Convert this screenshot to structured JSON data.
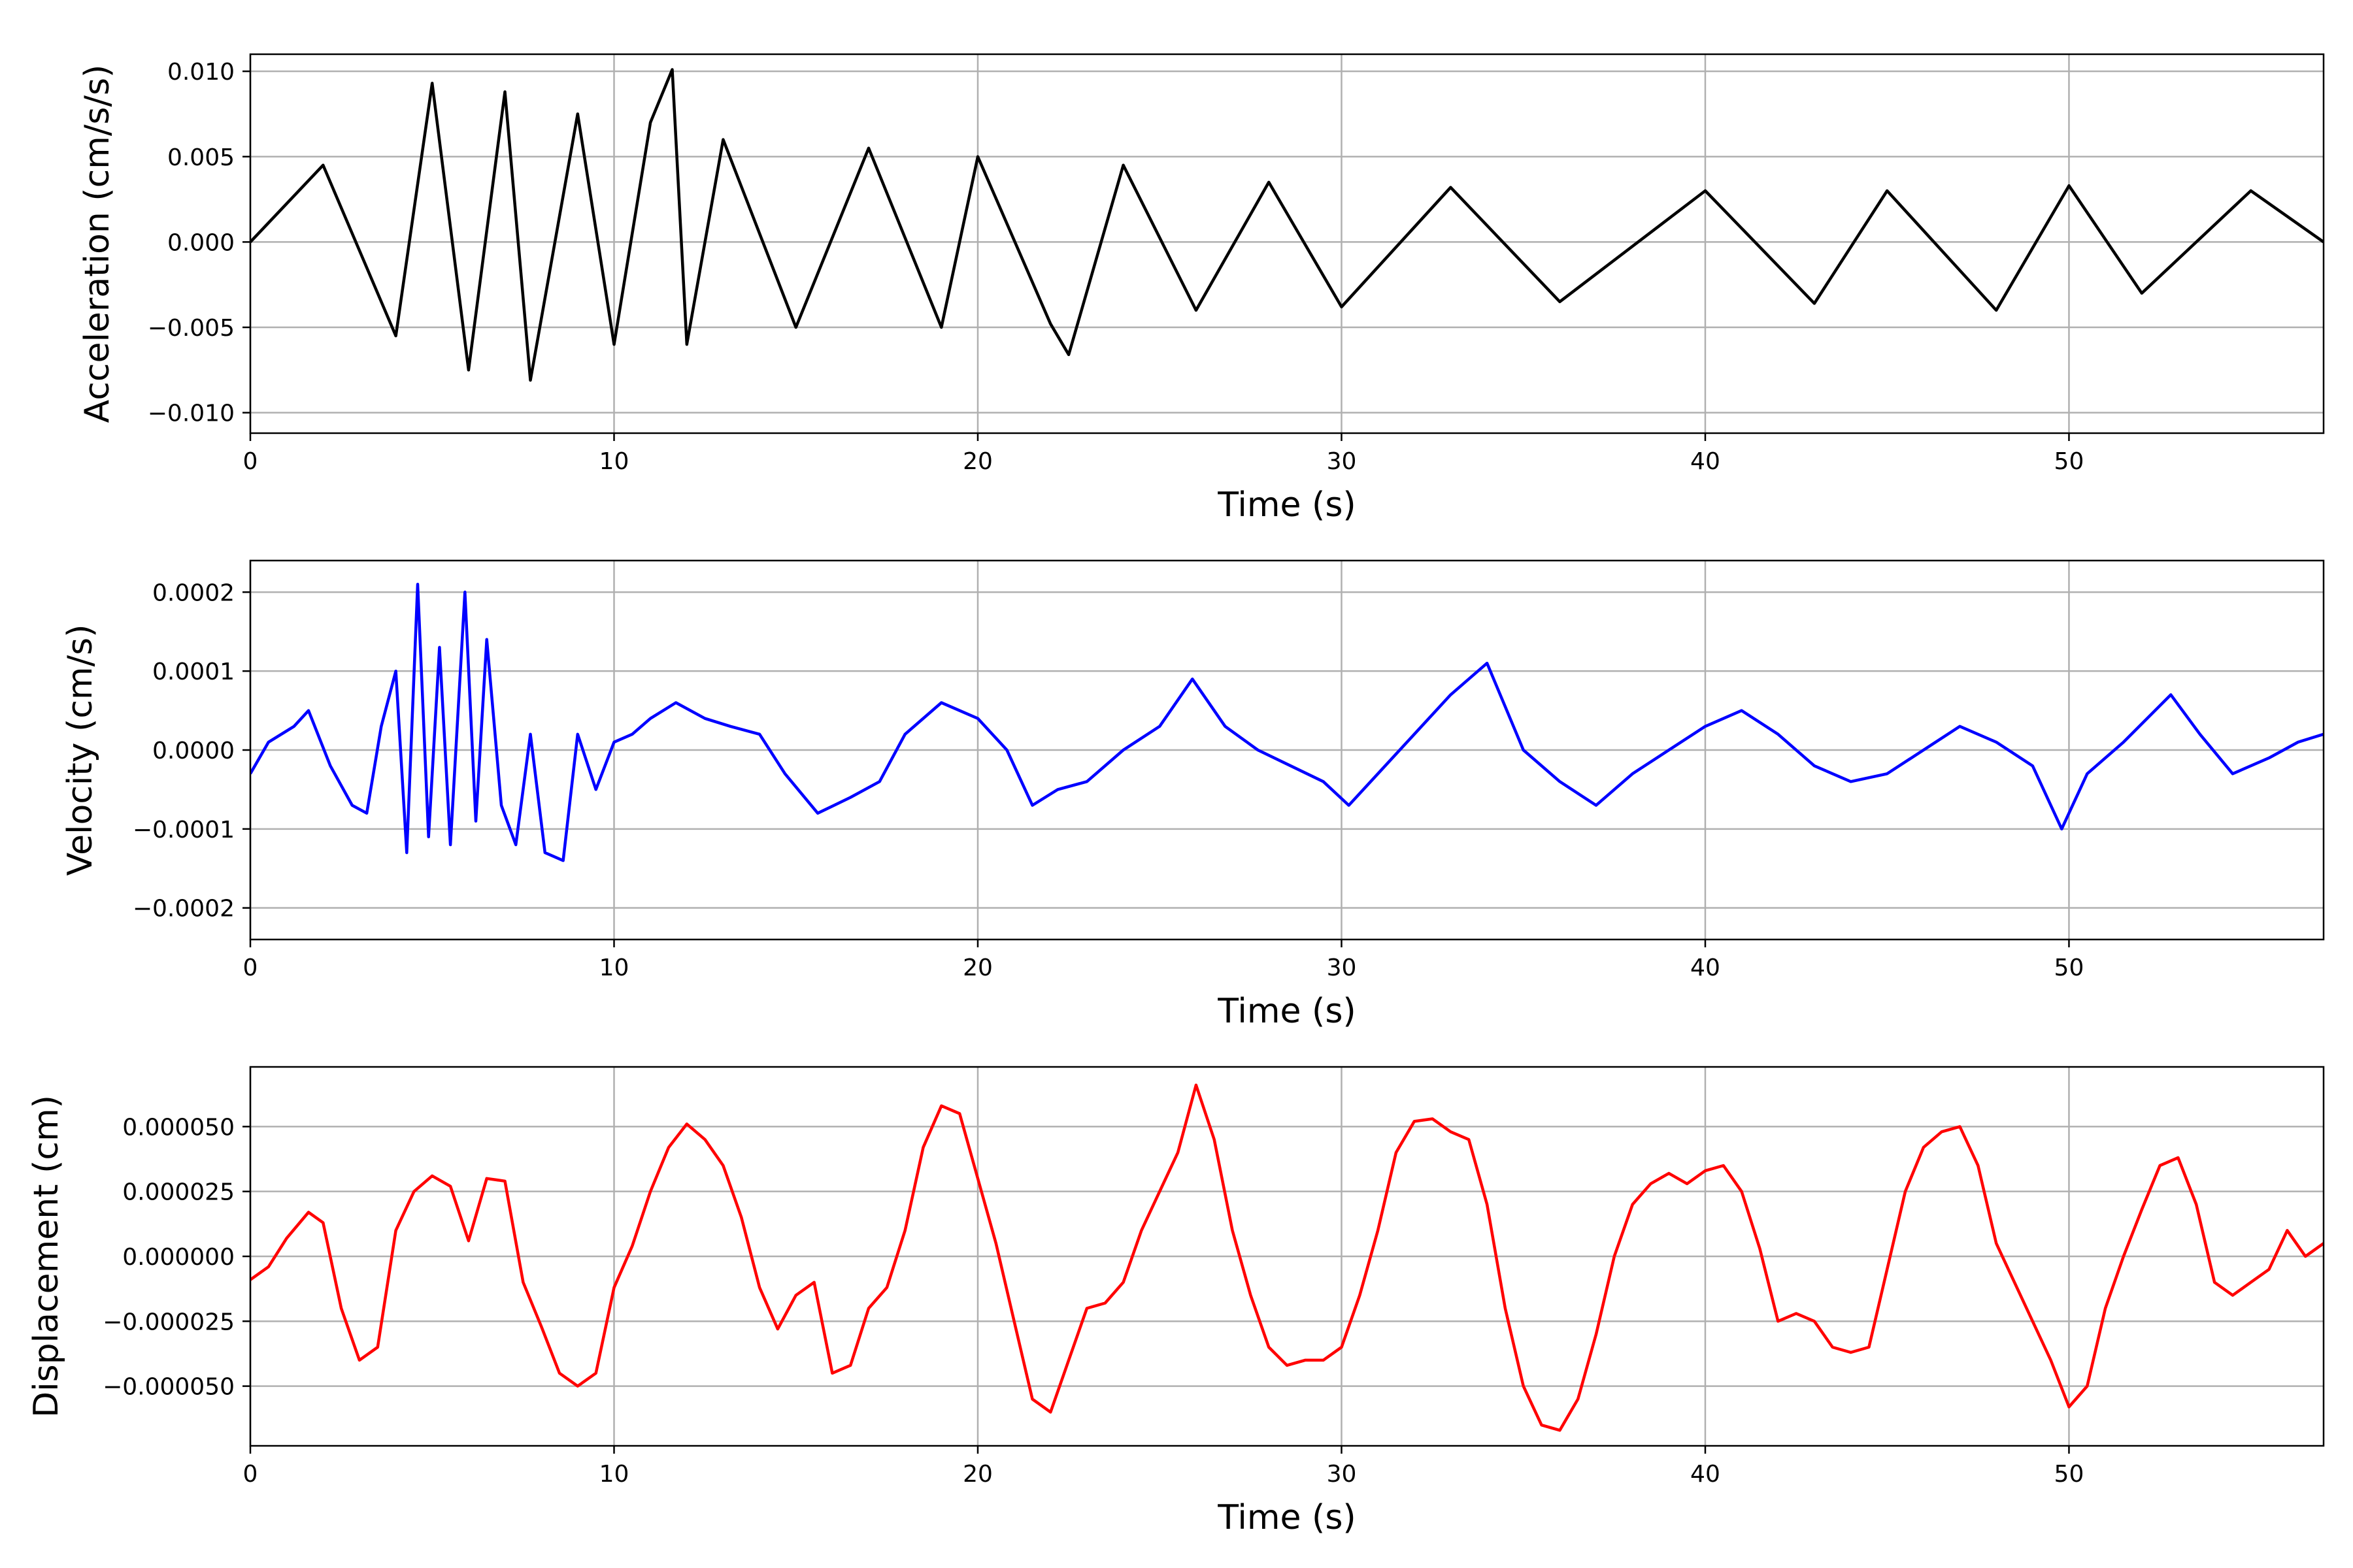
{
  "chart_data": [
    {
      "type": "line",
      "xlabel": "Time (s)",
      "ylabel": "Acceleration (cm/s/s)",
      "color": "#000000",
      "xlim": [
        0,
        57
      ],
      "ylim": [
        -0.0112,
        0.011
      ],
      "xticks": [
        0,
        10,
        20,
        30,
        40,
        50
      ],
      "xtick_labels": [
        "0",
        "10",
        "20",
        "30",
        "40",
        "50"
      ],
      "yticks": [
        -0.01,
        -0.005,
        0.0,
        0.005,
        0.01
      ],
      "ytick_labels": [
        "−0.010",
        "−0.005",
        "0.000",
        "0.005",
        "0.010"
      ],
      "grid": true,
      "series": [
        {
          "x": [
            0,
            2,
            4,
            5,
            6,
            7,
            7.7,
            9,
            10,
            11,
            11.6,
            12,
            13,
            15,
            17,
            19,
            20,
            22,
            22.5,
            24,
            26,
            28,
            30,
            33,
            36,
            40,
            43,
            45,
            48,
            50,
            52,
            55,
            57
          ],
          "y": [
            0.0,
            0.0045,
            -0.0055,
            0.0093,
            -0.0075,
            0.0088,
            -0.0081,
            0.0075,
            -0.006,
            0.007,
            0.0101,
            -0.006,
            0.006,
            -0.005,
            0.0055,
            -0.005,
            0.005,
            -0.0048,
            -0.0066,
            0.0045,
            -0.004,
            0.0035,
            -0.0038,
            0.0032,
            -0.0035,
            0.003,
            -0.0036,
            0.003,
            -0.004,
            0.0033,
            -0.003,
            0.003,
            0.0
          ]
        }
      ]
    },
    {
      "type": "line",
      "xlabel": "Time (s)",
      "ylabel": "Velocity (cm/s)",
      "color": "#0000ff",
      "xlim": [
        0,
        57
      ],
      "ylim": [
        -0.00024,
        0.00024
      ],
      "xticks": [
        0,
        10,
        20,
        30,
        40,
        50
      ],
      "xtick_labels": [
        "0",
        "10",
        "20",
        "30",
        "40",
        "50"
      ],
      "yticks": [
        -0.0002,
        -0.0001,
        0.0,
        0.0001,
        0.0002
      ],
      "ytick_labels": [
        "−0.0002",
        "−0.0001",
        "0.0000",
        "0.0001",
        "0.0002"
      ],
      "grid": true,
      "series": [
        {
          "x": [
            0,
            0.5,
            1.2,
            1.6,
            2.2,
            2.8,
            3.2,
            3.6,
            4.0,
            4.3,
            4.6,
            4.9,
            5.2,
            5.5,
            5.9,
            6.2,
            6.5,
            6.9,
            7.3,
            7.7,
            8.1,
            8.6,
            9.0,
            9.5,
            10.0,
            10.5,
            11.0,
            11.7,
            12.5,
            13.2,
            14.0,
            14.7,
            15.6,
            16.5,
            17.3,
            18.0,
            19.0,
            20.0,
            20.8,
            21.5,
            22.2,
            23.0,
            24.0,
            25.0,
            25.9,
            26.8,
            27.7,
            28.6,
            29.5,
            30.2,
            31.0,
            32.0,
            33.0,
            34.0,
            35.0,
            36.0,
            37.0,
            38.0,
            39.0,
            40.0,
            41.0,
            42.0,
            43.0,
            44.0,
            45.0,
            46.0,
            47.0,
            48.0,
            49.0,
            49.8,
            50.5,
            51.5,
            52.8,
            53.6,
            54.5,
            55.5,
            56.3,
            57.0
          ],
          "y": [
            -3e-05,
            1e-05,
            3e-05,
            5e-05,
            -2e-05,
            -7e-05,
            -8e-05,
            3e-05,
            0.0001,
            -0.00013,
            0.00021,
            -0.00011,
            0.00013,
            -0.00012,
            0.0002,
            -9e-05,
            0.00014,
            -7e-05,
            -0.00012,
            2e-05,
            -0.00013,
            -0.00014,
            2e-05,
            -5e-05,
            1e-05,
            2e-05,
            4e-05,
            6e-05,
            4e-05,
            3e-05,
            2e-05,
            -3e-05,
            -8e-05,
            -6e-05,
            -4e-05,
            2e-05,
            6e-05,
            4e-05,
            0.0,
            -7e-05,
            -5e-05,
            -4e-05,
            0.0,
            3e-05,
            9e-05,
            3e-05,
            0.0,
            -2e-05,
            -4e-05,
            -7e-05,
            -3e-05,
            2e-05,
            7e-05,
            0.00011,
            0.0,
            -4e-05,
            -7e-05,
            -3e-05,
            0.0,
            3e-05,
            5e-05,
            2e-05,
            -2e-05,
            -4e-05,
            -3e-05,
            0.0,
            3e-05,
            1e-05,
            -2e-05,
            -0.0001,
            -3e-05,
            1e-05,
            7e-05,
            2e-05,
            -3e-05,
            -1e-05,
            1e-05,
            2e-05
          ]
        }
      ]
    },
    {
      "type": "line",
      "xlabel": "Time (s)",
      "ylabel": "Displacement (cm)",
      "color": "#ff0000",
      "xlim": [
        0,
        57
      ],
      "ylim": [
        -7.3e-05,
        7.3e-05
      ],
      "xticks": [
        0,
        10,
        20,
        30,
        40,
        50
      ],
      "xtick_labels": [
        "0",
        "10",
        "20",
        "30",
        "40",
        "50"
      ],
      "yticks": [
        -5e-05,
        -2.5e-05,
        0.0,
        2.5e-05,
        5e-05
      ],
      "ytick_labels": [
        "−0.000050",
        "−0.000025",
        "0.000000",
        "0.000025",
        "0.000050"
      ],
      "grid": true,
      "series": [
        {
          "x": [
            0,
            0.5,
            1.0,
            1.6,
            2.0,
            2.5,
            3.0,
            3.5,
            4.0,
            4.5,
            5.0,
            5.5,
            6.0,
            6.5,
            7.0,
            7.5,
            8.0,
            8.5,
            9.0,
            9.5,
            10.0,
            10.5,
            11.0,
            11.5,
            12.0,
            12.5,
            13.0,
            13.5,
            14.0,
            14.5,
            15.0,
            15.5,
            16.0,
            16.5,
            17.0,
            17.5,
            18.0,
            18.5,
            19.0,
            19.5,
            20.0,
            20.5,
            21.0,
            21.5,
            22.0,
            22.5,
            23.0,
            23.5,
            24.0,
            24.5,
            25.0,
            25.5,
            26.0,
            26.5,
            27.0,
            27.5,
            28.0,
            28.5,
            29.0,
            29.5,
            30.0,
            30.5,
            31.0,
            31.5,
            32.0,
            32.5,
            33.0,
            33.5,
            34.0,
            34.5,
            35.0,
            35.5,
            36.0,
            36.5,
            37.0,
            37.5,
            38.0,
            38.5,
            39.0,
            39.5,
            40.0,
            40.5,
            41.0,
            41.5,
            42.0,
            42.5,
            43.0,
            43.5,
            44.0,
            44.5,
            45.0,
            45.5,
            46.0,
            46.5,
            47.0,
            47.5,
            48.0,
            48.5,
            49.0,
            49.5,
            50.0,
            50.5,
            51.0,
            51.5,
            52.0,
            52.5,
            53.0,
            53.5,
            54.0,
            54.5,
            55.0,
            55.5,
            56.0,
            56.5,
            57.0
          ],
          "y": [
            -9e-06,
            -4e-06,
            7e-06,
            1.7e-05,
            1.3e-05,
            -2e-05,
            -4e-05,
            -3.5e-05,
            1e-05,
            2.5e-05,
            3.1e-05,
            2.7e-05,
            6e-06,
            3e-05,
            2.9e-05,
            -1e-05,
            -2.7e-05,
            -4.5e-05,
            -5e-05,
            -4.5e-05,
            -1.2e-05,
            4e-06,
            2.5e-05,
            4.2e-05,
            5.1e-05,
            4.5e-05,
            3.5e-05,
            1.5e-05,
            -1.2e-05,
            -2.8e-05,
            -1.5e-05,
            -1e-05,
            -4.5e-05,
            -4.2e-05,
            -2e-05,
            -1.2e-05,
            1e-05,
            4.2e-05,
            5.8e-05,
            5.5e-05,
            3e-05,
            5e-06,
            -2.5e-05,
            -5.5e-05,
            -6e-05,
            -4e-05,
            -2e-05,
            -1.8e-05,
            -1e-05,
            1e-05,
            2.5e-05,
            4e-05,
            6.6e-05,
            4.5e-05,
            1e-05,
            -1.5e-05,
            -3.5e-05,
            -4.2e-05,
            -4e-05,
            -4e-05,
            -3.5e-05,
            -1.5e-05,
            1e-05,
            4e-05,
            5.2e-05,
            5.3e-05,
            4.8e-05,
            4.5e-05,
            2e-05,
            -2e-05,
            -5e-05,
            -6.5e-05,
            -6.7e-05,
            -5.5e-05,
            -3e-05,
            0.0,
            2e-05,
            2.8e-05,
            3.2e-05,
            2.8e-05,
            3.3e-05,
            3.5e-05,
            2.5e-05,
            3e-06,
            -2.5e-05,
            -2.2e-05,
            -2.5e-05,
            -3.5e-05,
            -3.7e-05,
            -3.5e-05,
            -5e-06,
            2.5e-05,
            4.2e-05,
            4.8e-05,
            5e-05,
            3.5e-05,
            5e-06,
            -1e-05,
            -2.5e-05,
            -4e-05,
            -5.8e-05,
            -5e-05,
            -2e-05,
            0.0,
            1.8e-05,
            3.5e-05,
            3.8e-05,
            2e-05,
            -1e-05,
            -1.5e-05,
            -1e-05,
            -5e-06,
            1e-05,
            0.0,
            5e-06
          ]
        }
      ]
    }
  ]
}
